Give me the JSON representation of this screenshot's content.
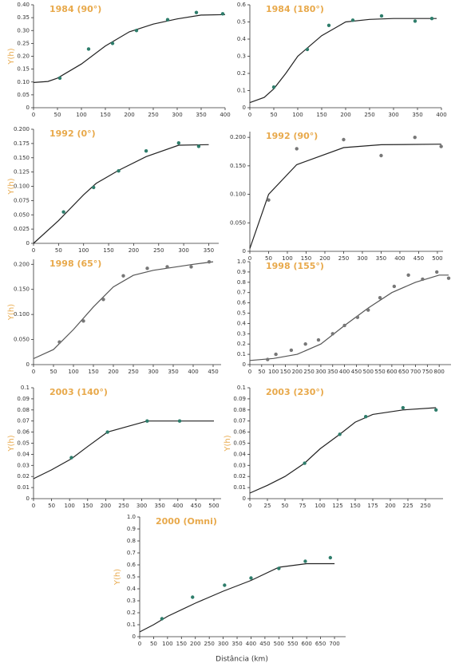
{
  "xlabel": "Distância (km)",
  "chart_data": [
    {
      "type": "scatter",
      "title": "1984 (90°)",
      "ylabel": "Y(h)",
      "color": "#2e7d6b",
      "line_color": "#222222",
      "x": [
        55,
        115,
        165,
        215,
        280,
        340,
        395
      ],
      "values": [
        0.115,
        0.228,
        0.25,
        0.3,
        0.342,
        0.37,
        0.365
      ],
      "line_x": [
        0,
        30,
        50,
        100,
        150,
        200,
        250,
        300,
        350,
        400
      ],
      "line_y": [
        0.098,
        0.102,
        0.115,
        0.17,
        0.24,
        0.295,
        0.325,
        0.345,
        0.36,
        0.362
      ],
      "xlim": [
        0,
        400
      ],
      "xticks": [
        0,
        50,
        100,
        150,
        200,
        250,
        300,
        350,
        400
      ],
      "ylim": [
        0,
        0.4
      ],
      "yticks": [
        0,
        0.05,
        {
          "value": 0.1,
          "label": "0.10"
        },
        0.15,
        {
          "value": 0.2,
          "label": "0.20"
        },
        0.25,
        {
          "value": 0.3,
          "label": "0.30"
        },
        0.35,
        {
          "value": 0.4,
          "label": "0.40"
        }
      ]
    },
    {
      "type": "scatter",
      "title": "1984 (180°)",
      "color": "#2e7d6b",
      "line_color": "#222222",
      "x": [
        50,
        120,
        165,
        215,
        275,
        345,
        380
      ],
      "values": [
        0.12,
        0.34,
        0.48,
        0.51,
        0.535,
        0.505,
        0.52
      ],
      "line_x": [
        0,
        30,
        50,
        75,
        100,
        125,
        150,
        175,
        200,
        250,
        300,
        390
      ],
      "line_y": [
        0.03,
        0.06,
        0.11,
        0.2,
        0.3,
        0.36,
        0.42,
        0.46,
        0.5,
        0.515,
        0.52,
        0.52
      ],
      "xlim": [
        0,
        400
      ],
      "xticks": [
        0,
        50,
        100,
        150,
        200,
        250,
        300,
        350,
        400
      ],
      "ylim": [
        0,
        0.6
      ],
      "yticks": [
        0,
        0.1,
        0.2,
        0.3,
        0.4,
        0.5,
        0.6
      ]
    },
    {
      "type": "scatter",
      "title": "1992 (0°)",
      "ylabel": "Y(h)",
      "color": "#2e7d6b",
      "line_color": "#222222",
      "x": [
        60,
        120,
        170,
        225,
        290,
        330
      ],
      "values": [
        0.055,
        0.098,
        0.127,
        0.162,
        0.176,
        0.17
      ],
      "line_x": [
        0,
        50,
        100,
        125,
        170,
        225,
        290,
        350
      ],
      "line_y": [
        0,
        0.04,
        0.085,
        0.105,
        0.128,
        0.152,
        0.172,
        0.173
      ],
      "xlim": [
        0,
        370
      ],
      "xticks": [
        0,
        50,
        100,
        150,
        200,
        250,
        300,
        350
      ],
      "ylim": [
        0,
        0.2
      ],
      "yticks": [
        0,
        0.025,
        {
          "value": 0.05,
          "label": "0.050"
        },
        0.075,
        {
          "value": 0.1,
          "label": "0.100"
        },
        0.125,
        {
          "value": 0.15,
          "label": "0.150"
        },
        0.175,
        {
          "value": 0.2,
          "label": "0.200"
        }
      ]
    },
    {
      "type": "scatter",
      "title": "1992 (90°)",
      "color": "#777777",
      "line_color": "#222222",
      "x": [
        50,
        125,
        250,
        350,
        440,
        510
      ],
      "values": [
        0.09,
        0.18,
        0.196,
        0.168,
        0.2,
        0.184
      ],
      "line_x": [
        0,
        50,
        125,
        250,
        350,
        510
      ],
      "line_y": [
        0.005,
        0.1,
        0.152,
        0.182,
        0.187,
        0.188
      ],
      "xlim": [
        0,
        515
      ],
      "xticks": [
        0,
        50,
        100,
        150,
        200,
        250,
        300,
        350,
        400,
        450,
        500
      ],
      "ylim": [
        0,
        0.21
      ],
      "yticks": [
        0,
        {
          "value": 0.05,
          "label": "0.050"
        },
        {
          "value": 0.1,
          "label": "0.100"
        },
        {
          "value": 0.15,
          "label": "0.150"
        },
        {
          "value": 0.2,
          "label": "0.200"
        }
      ]
    },
    {
      "type": "scatter",
      "title": "1998 (65°)",
      "ylabel": "Y(h)",
      "color": "#777777",
      "line_color": "#555555",
      "x": [
        65,
        125,
        175,
        225,
        285,
        335,
        395,
        440
      ],
      "values": [
        0.045,
        0.087,
        0.13,
        0.177,
        0.192,
        0.195,
        0.195,
        0.205
      ],
      "line_x": [
        0,
        50,
        100,
        150,
        200,
        250,
        300,
        400,
        450
      ],
      "line_y": [
        0.012,
        0.03,
        0.07,
        0.115,
        0.155,
        0.178,
        0.188,
        0.2,
        0.205
      ],
      "xlim": [
        0,
        470
      ],
      "xticks": [
        0,
        50,
        100,
        150,
        200,
        250,
        300,
        350,
        400,
        450
      ],
      "ylim": [
        0,
        0.21
      ],
      "yticks": [
        0,
        {
          "value": 0.05,
          "label": "0.050"
        },
        {
          "value": 0.1,
          "label": "0.100"
        },
        {
          "value": 0.15,
          "label": "0.150"
        },
        {
          "value": 0.2,
          "label": "0.200"
        }
      ]
    },
    {
      "type": "scatter",
      "title": "1998 (155°)",
      "color": "#777777",
      "line_color": "#555555",
      "x": [
        75,
        110,
        175,
        235,
        290,
        350,
        400,
        455,
        500,
        550,
        610,
        670,
        730,
        790,
        840
      ],
      "values": [
        0.05,
        0.1,
        0.14,
        0.2,
        0.24,
        0.3,
        0.38,
        0.46,
        0.53,
        0.65,
        0.76,
        0.87,
        0.83,
        0.9,
        0.84
      ],
      "line_x": [
        0,
        100,
        200,
        300,
        400,
        500,
        600,
        700,
        800,
        840
      ],
      "line_y": [
        0.04,
        0.06,
        0.1,
        0.2,
        0.38,
        0.55,
        0.7,
        0.8,
        0.87,
        0.87
      ],
      "xlim": [
        0,
        850
      ],
      "xticks": [
        0,
        50,
        100,
        150,
        200,
        250,
        300,
        350,
        400,
        450,
        500,
        550,
        600,
        650,
        700,
        750,
        800
      ],
      "ylim": [
        0,
        1.0
      ],
      "yticks": [
        0,
        0.1,
        0.2,
        0.3,
        0.4,
        0.5,
        0.6,
        0.7,
        0.8,
        0.9,
        {
          "value": 1.0,
          "label": "1.0"
        }
      ]
    },
    {
      "type": "scatter",
      "title": "2003 (140°)",
      "ylabel": "Y(h)",
      "color": "#2e7d6b",
      "line_color": "#222222",
      "x": [
        105,
        205,
        315,
        405
      ],
      "values": [
        0.037,
        0.06,
        0.07,
        0.07
      ],
      "line_x": [
        0,
        50,
        105,
        150,
        205,
        315,
        500
      ],
      "line_y": [
        0.018,
        0.026,
        0.036,
        0.047,
        0.06,
        0.07,
        0.07
      ],
      "xlim": [
        0,
        520
      ],
      "xticks": [
        0,
        50,
        100,
        150,
        200,
        250,
        300,
        350,
        400,
        450,
        500
      ],
      "ylim": [
        0,
        0.1
      ],
      "yticks": [
        0,
        0.01,
        0.02,
        0.03,
        0.04,
        0.05,
        0.06,
        0.07,
        0.08,
        0.09,
        0.1
      ]
    },
    {
      "type": "scatter",
      "title": "2003 (230°)",
      "ylabel": "Y(h)",
      "color": "#2e7d6b",
      "line_color": "#222222",
      "x": [
        78,
        128,
        165,
        218,
        265
      ],
      "values": [
        0.032,
        0.058,
        0.074,
        0.082,
        0.08
      ],
      "line_x": [
        0,
        25,
        50,
        78,
        100,
        128,
        150,
        175,
        218,
        265
      ],
      "line_y": [
        0.005,
        0.012,
        0.02,
        0.032,
        0.045,
        0.058,
        0.069,
        0.076,
        0.08,
        0.082
      ],
      "xlim": [
        0,
        275
      ],
      "xticks": [
        0,
        25,
        50,
        75,
        100,
        125,
        150,
        175,
        200,
        225,
        250
      ],
      "ylim": [
        0,
        0.1
      ],
      "yticks": [
        0,
        0.01,
        0.02,
        0.03,
        0.04,
        0.05,
        0.06,
        0.07,
        0.08,
        0.09,
        0.1
      ]
    },
    {
      "type": "scatter",
      "title": "2000 (Omni)",
      "ylabel": "Y(h)",
      "color": "#2e7d6b",
      "line_color": "#222222",
      "x": [
        80,
        190,
        305,
        400,
        500,
        595,
        685
      ],
      "values": [
        0.15,
        0.33,
        0.43,
        0.49,
        0.57,
        0.63,
        0.66
      ],
      "line_x": [
        0,
        50,
        100,
        200,
        300,
        400,
        500,
        600,
        700
      ],
      "line_y": [
        0.04,
        0.1,
        0.17,
        0.28,
        0.38,
        0.47,
        0.58,
        0.61,
        0.61
      ],
      "xlim": [
        0,
        740
      ],
      "xticks": [
        0,
        50,
        100,
        150,
        200,
        250,
        300,
        350,
        400,
        450,
        500,
        550,
        600,
        650,
        700
      ],
      "ylim": [
        0,
        1.0
      ],
      "yticks": [
        0,
        0.1,
        0.2,
        0.3,
        0.4,
        0.5,
        0.6,
        0.7,
        0.8,
        0.9,
        {
          "value": 1.0,
          "label": "1.0"
        }
      ]
    }
  ]
}
